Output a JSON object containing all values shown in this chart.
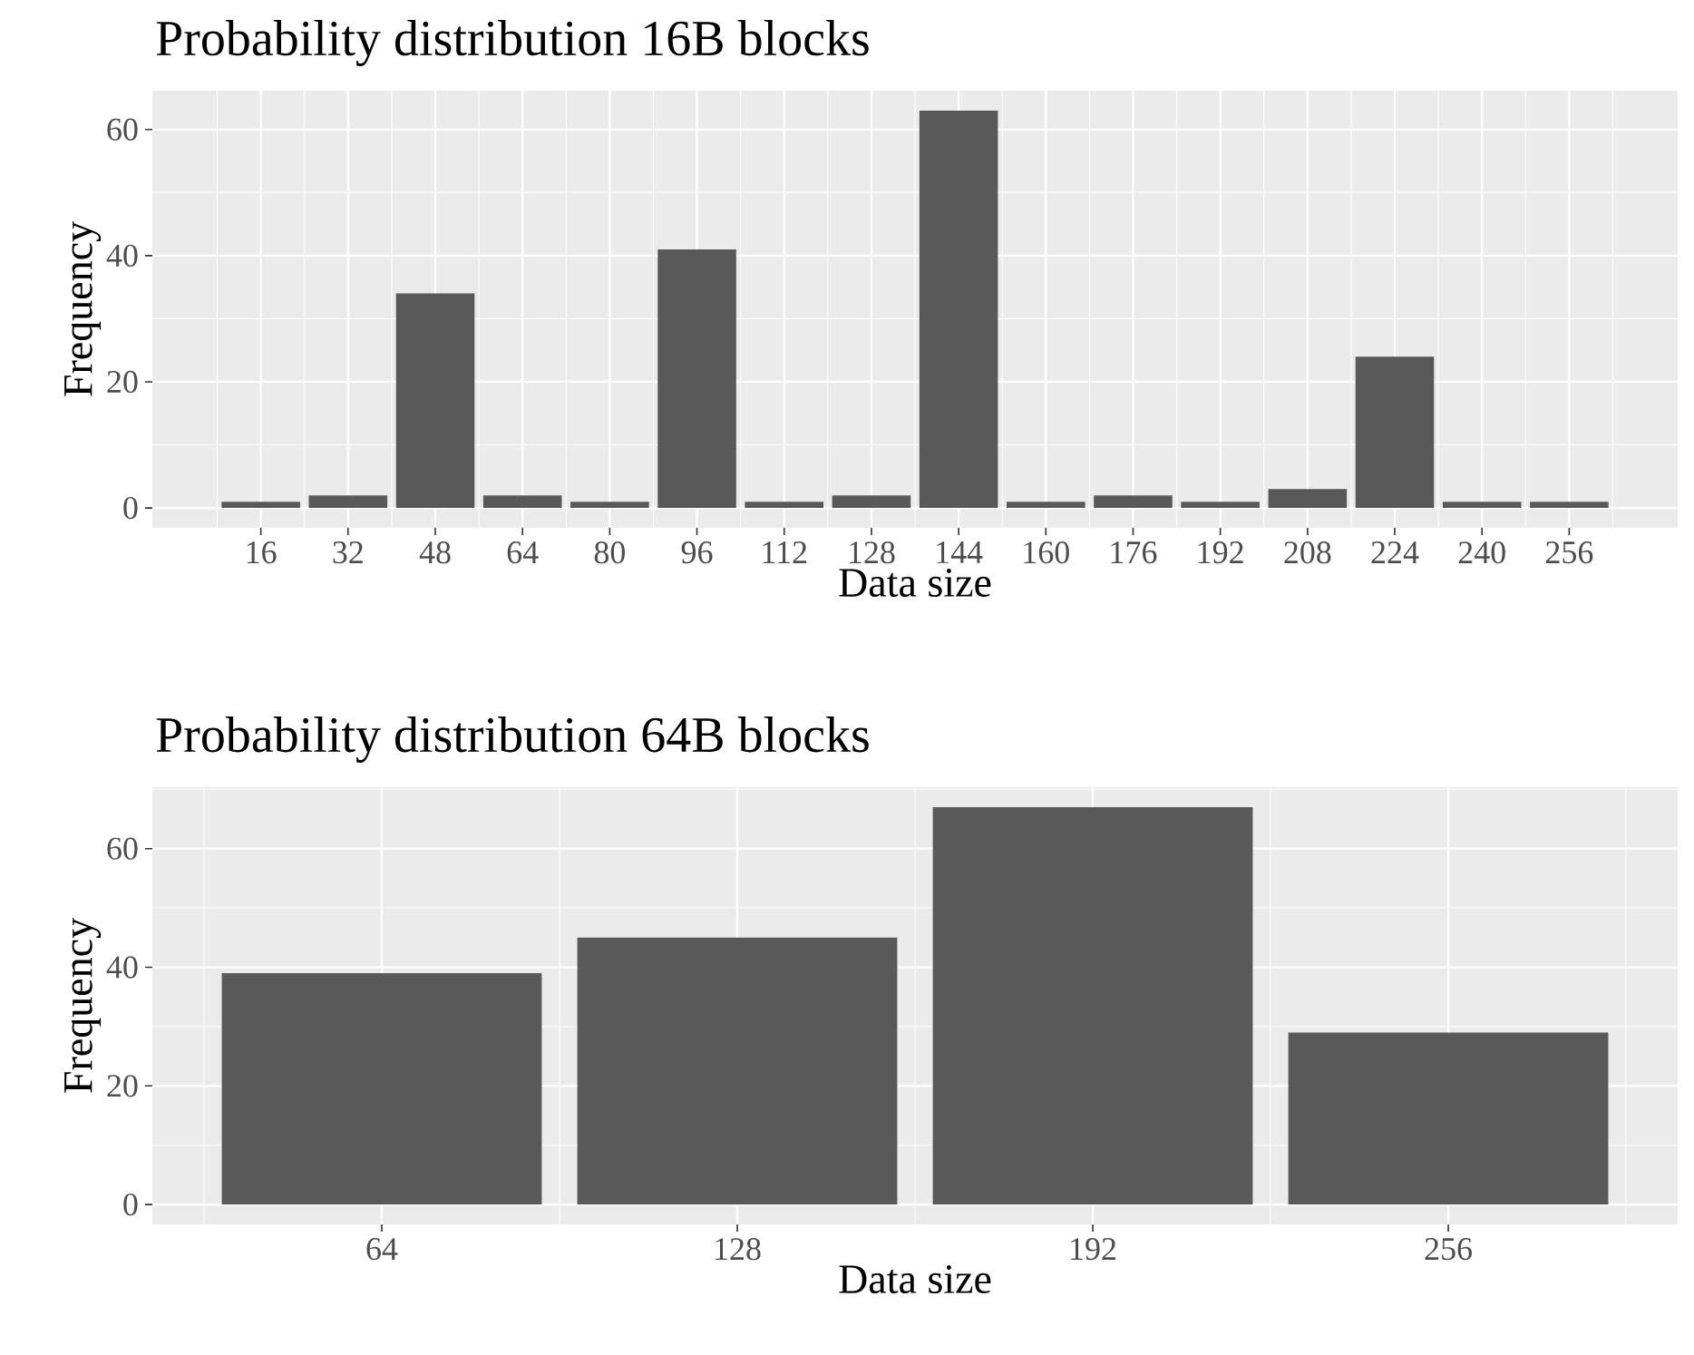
{
  "chart_data": [
    {
      "type": "bar",
      "title": "Probability distribution 16B blocks",
      "xlabel": "Data size",
      "ylabel": "Frequency",
      "color": "#595959",
      "x": [
        16,
        32,
        48,
        64,
        80,
        96,
        112,
        128,
        144,
        160,
        176,
        192,
        208,
        224,
        240,
        256
      ],
      "values": [
        1,
        2,
        34,
        2,
        1,
        41,
        1,
        2,
        63,
        1,
        2,
        1,
        3,
        24,
        1,
        1
      ],
      "xlim": [
        -3.9,
        275.9
      ],
      "xticks": [
        16,
        32,
        48,
        64,
        80,
        96,
        112,
        128,
        144,
        160,
        176,
        192,
        208,
        224,
        240,
        256
      ],
      "ylim": [
        -3.15,
        66.15
      ],
      "yticks": [
        0,
        20,
        40,
        60
      ],
      "grid": true
    },
    {
      "type": "bar",
      "title": "Probability distribution 64B blocks",
      "xlabel": "Data size",
      "ylabel": "Frequency",
      "color": "#595959",
      "x": [
        64,
        128,
        192,
        256
      ],
      "values": [
        39,
        45,
        67,
        29
      ],
      "xlim": [
        22.7,
        297.3
      ],
      "xticks": [
        64,
        128,
        192,
        256
      ],
      "ylim": [
        -3.35,
        70.35
      ],
      "yticks": [
        0,
        20,
        40,
        60
      ],
      "grid": true
    }
  ]
}
